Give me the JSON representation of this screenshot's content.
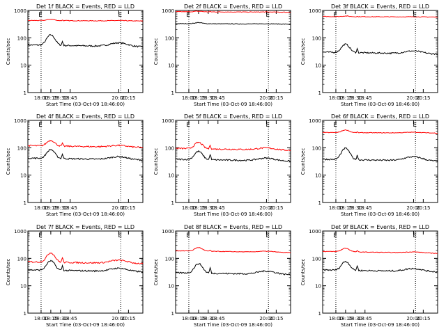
{
  "figure": {
    "type": "multi-panel log-scale time series",
    "ylabel": "Counts/sec",
    "xlabel": "Start Time (03-Oct-09 18:46:00)"
  },
  "chart_data": [
    {
      "type": "line",
      "title": "Det 1f BLACK = Events, RED = LLD",
      "ylim": [
        1,
        1000
      ],
      "xlim": [
        17.66,
        20.62
      ],
      "yscale": "log",
      "xticks": [
        "18:00",
        "18:15",
        "18:30",
        "18:45",
        "20:00",
        "20:15"
      ],
      "yticks": [
        "1",
        "10",
        "100",
        "1000"
      ],
      "vlines": [
        18.0,
        20.05
      ],
      "markers": [
        "E",
        "E"
      ],
      "series": [
        {
          "name": "Events",
          "color": "#000000",
          "base": 55,
          "bump": 2.4,
          "spike": 1.4
        },
        {
          "name": "LLD",
          "color": "#ff0000",
          "base": 430,
          "bump": 1.12,
          "spike": 1.05
        }
      ]
    },
    {
      "type": "line",
      "title": "Det 2f BLACK = Events, RED = LLD",
      "ylim": [
        1,
        1000
      ],
      "xlim": [
        17.66,
        20.62
      ],
      "yscale": "log",
      "xticks": [
        "18:00",
        "18:15",
        "18:30",
        "18:45",
        "20:00",
        "20:15"
      ],
      "yticks": [
        "1",
        "10",
        "100",
        "1000"
      ],
      "vlines": [
        18.0,
        20.05
      ],
      "markers": [
        "E",
        "E"
      ],
      "series": [
        {
          "name": "Events",
          "color": "#000000",
          "base": 330,
          "bump": 1.1,
          "spike": 1.02
        },
        {
          "name": "LLD",
          "color": "#ff0000",
          "base": 900,
          "bump": 1.05,
          "spike": 1.02
        }
      ]
    },
    {
      "type": "line",
      "title": "Det 3f BLACK = Events, RED = LLD",
      "ylim": [
        1,
        1000
      ],
      "xlim": [
        17.66,
        20.62
      ],
      "yscale": "log",
      "xticks": [
        "18:00",
        "18:15",
        "18:30",
        "18:45",
        "20:00",
        "20:15"
      ],
      "yticks": [
        "1",
        "10",
        "100",
        "1000"
      ],
      "vlines": [
        18.0,
        20.05
      ],
      "markers": [
        "E",
        "E"
      ],
      "series": [
        {
          "name": "Events",
          "color": "#000000",
          "base": 30,
          "bump": 2.0,
          "spike": 1.4
        },
        {
          "name": "LLD",
          "color": "#ff0000",
          "base": 600,
          "bump": 1.05,
          "spike": 1.02
        }
      ]
    },
    {
      "type": "line",
      "title": "Det 4f BLACK = Events, RED = LLD",
      "ylim": [
        1,
        1000
      ],
      "xlim": [
        17.66,
        20.62
      ],
      "yscale": "log",
      "xticks": [
        "18:00",
        "18:15",
        "18:30",
        "18:45",
        "20:00",
        "20:15"
      ],
      "yticks": [
        "1",
        "10",
        "100",
        "1000"
      ],
      "vlines": [
        18.0,
        20.05
      ],
      "markers": [
        "E",
        "E"
      ],
      "series": [
        {
          "name": "Events",
          "color": "#000000",
          "base": 42,
          "bump": 2.1,
          "spike": 1.5
        },
        {
          "name": "LLD",
          "color": "#ff0000",
          "base": 120,
          "bump": 1.6,
          "spike": 1.25
        }
      ]
    },
    {
      "type": "line",
      "title": "Det 5f BLACK = Events, RED = LLD",
      "ylim": [
        1,
        1000
      ],
      "xlim": [
        17.66,
        20.62
      ],
      "yscale": "log",
      "xticks": [
        "18:00",
        "18:15",
        "18:30",
        "18:45",
        "20:00",
        "20:15"
      ],
      "yticks": [
        "1",
        "10",
        "100",
        "1000"
      ],
      "vlines": [
        18.0,
        20.05
      ],
      "markers": [
        "E",
        "E"
      ],
      "series": [
        {
          "name": "Events",
          "color": "#000000",
          "base": 38,
          "bump": 2.0,
          "spike": 1.6
        },
        {
          "name": "LLD",
          "color": "#ff0000",
          "base": 95,
          "bump": 1.7,
          "spike": 1.4
        }
      ]
    },
    {
      "type": "line",
      "title": "Det 6f BLACK = Events, RED = LLD",
      "ylim": [
        1,
        1000
      ],
      "xlim": [
        17.66,
        20.62
      ],
      "yscale": "log",
      "xticks": [
        "18:00",
        "18:15",
        "18:30",
        "18:45",
        "20:00",
        "20:15"
      ],
      "yticks": [
        "1",
        "10",
        "100",
        "1000"
      ],
      "vlines": [
        18.0,
        20.05
      ],
      "markers": [
        "E",
        "E"
      ],
      "series": [
        {
          "name": "Events",
          "color": "#000000",
          "base": 38,
          "bump": 2.6,
          "spike": 1.5
        },
        {
          "name": "LLD",
          "color": "#ff0000",
          "base": 360,
          "bump": 1.25,
          "spike": 1.05
        }
      ]
    },
    {
      "type": "line",
      "title": "Det 7f BLACK = Events, RED = LLD",
      "ylim": [
        1,
        1000
      ],
      "xlim": [
        17.66,
        20.62
      ],
      "yscale": "log",
      "xticks": [
        "18:00",
        "18:15",
        "18:30",
        "18:45",
        "20:00",
        "20:15"
      ],
      "yticks": [
        "1",
        "10",
        "100",
        "1000"
      ],
      "vlines": [
        18.0,
        20.05
      ],
      "markers": [
        "E",
        "E"
      ],
      "series": [
        {
          "name": "Events",
          "color": "#000000",
          "base": 38,
          "bump": 2.2,
          "spike": 1.5
        },
        {
          "name": "LLD",
          "color": "#ff0000",
          "base": 75,
          "bump": 2.2,
          "spike": 1.5
        }
      ]
    },
    {
      "type": "line",
      "title": "Det 8f BLACK = Events, RED = LLD",
      "ylim": [
        1,
        1000
      ],
      "xlim": [
        17.66,
        20.62
      ],
      "yscale": "log",
      "xticks": [
        "18:00",
        "18:15",
        "18:30",
        "18:45",
        "20:00",
        "20:15"
      ],
      "yticks": [
        "1",
        "10",
        "100",
        "1000"
      ],
      "vlines": [
        18.0,
        20.05
      ],
      "markers": [
        "E",
        "E"
      ],
      "series": [
        {
          "name": "Events",
          "color": "#000000",
          "base": 30,
          "bump": 2.2,
          "spike": 1.6
        },
        {
          "name": "LLD",
          "color": "#ff0000",
          "base": 190,
          "bump": 1.35,
          "spike": 1.1
        }
      ]
    },
    {
      "type": "line",
      "title": "Det 9f BLACK = Events, RED = LLD",
      "ylim": [
        1,
        1000
      ],
      "xlim": [
        17.66,
        20.62
      ],
      "yscale": "log",
      "xticks": [
        "18:00",
        "18:15",
        "18:30",
        "18:45",
        "20:00",
        "20:15"
      ],
      "yticks": [
        "1",
        "10",
        "100",
        "1000"
      ],
      "vlines": [
        18.0,
        20.05
      ],
      "markers": [
        "E",
        "E"
      ],
      "series": [
        {
          "name": "Events",
          "color": "#000000",
          "base": 38,
          "bump": 2.1,
          "spike": 1.5
        },
        {
          "name": "LLD",
          "color": "#ff0000",
          "base": 180,
          "bump": 1.35,
          "spike": 1.1
        }
      ]
    }
  ]
}
